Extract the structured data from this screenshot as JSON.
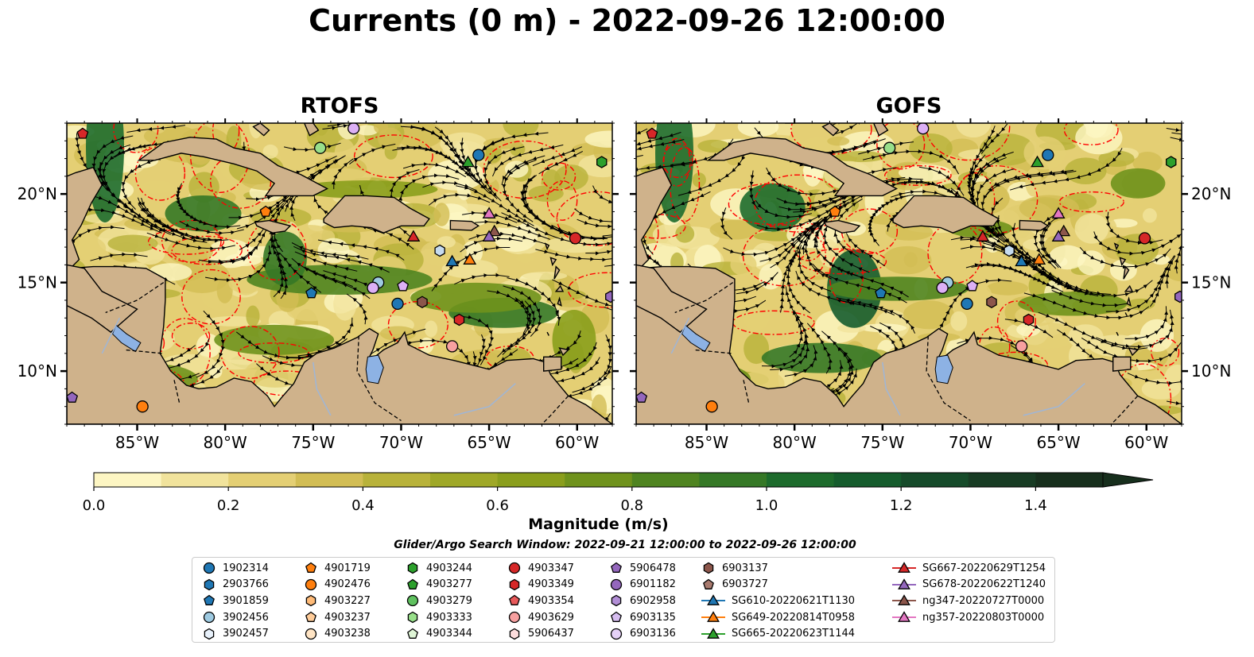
{
  "figure": {
    "title": "Currents (0 m) - 2022-09-26 12:00:00",
    "search_window": "Glider/Argo Search Window: 2022-09-21 12:00:00 to 2022-09-26 12:00:00"
  },
  "colors": {
    "land": "#cfb28b",
    "water_low": "#fdf6c3",
    "water_mid": "#e4cf74",
    "currents_mid": "#8aa11f",
    "currents_high": "#1f6e2a",
    "currents_max": "#16301a",
    "eddy_contour": "#ff0000",
    "streamline": "#000000",
    "lakes": "#8db2e4",
    "rivers": "#9fb6d6"
  },
  "chart_data": [
    {
      "type": "map",
      "panel_title": "RTOFS",
      "lon_range": [
        -89,
        -58
      ],
      "lat_range": [
        7,
        24
      ],
      "x_ticks": [
        "85°W",
        "80°W",
        "75°W",
        "70°W",
        "65°W",
        "60°W"
      ],
      "x_tick_values": [
        -85,
        -80,
        -75,
        -70,
        -65,
        -60
      ],
      "y_ticks": [
        "20°N",
        "15°N",
        "10°N"
      ],
      "y_tick_values": [
        20,
        15,
        10
      ],
      "y_axis_side": "left",
      "markers": [
        {
          "id": "4903354",
          "shape": "pentagon",
          "color": "#d62728",
          "lon": -88.1,
          "lat": 23.4
        },
        {
          "id": "6903136",
          "shape": "circle",
          "color": "#dcb0f5",
          "lon": -72.7,
          "lat": 23.7
        },
        {
          "id": "4903333",
          "shape": "circle",
          "color": "#98df8a",
          "lon": -74.6,
          "lat": 22.6
        },
        {
          "id": "1902314",
          "shape": "circle",
          "color": "#1f77b4",
          "lon": -65.6,
          "lat": 22.2
        },
        {
          "id": "SG665-20220623T1144",
          "shape": "triangle",
          "color": "#2ca02c",
          "lon": -66.2,
          "lat": 21.8
        },
        {
          "id": "4903244",
          "shape": "hexagon",
          "color": "#2ca02c",
          "lon": -58.6,
          "lat": 21.8
        },
        {
          "id": "4901719",
          "shape": "pentagon",
          "color": "#ff7f0e",
          "lon": -77.7,
          "lat": 19.0
        },
        {
          "id": "ng357-20220803T0000",
          "shape": "triangle",
          "color": "#e377c2",
          "lon": -65.0,
          "lat": 18.9
        },
        {
          "id": "ng347-20220727T0000",
          "shape": "triangle",
          "color": "#8c564b",
          "lon": -64.7,
          "lat": 17.9
        },
        {
          "id": "SG678-20220622T1240",
          "shape": "triangle",
          "color": "#9467bd",
          "lon": -65.0,
          "lat": 17.6
        },
        {
          "id": "SG667-20220629T1254",
          "shape": "triangle",
          "color": "#d62728",
          "lon": -69.3,
          "lat": 17.6
        },
        {
          "id": "4903347",
          "shape": "circle",
          "color": "#d62728",
          "lon": -60.1,
          "lat": 17.5
        },
        {
          "id": "3902457",
          "shape": "hexagon",
          "color": "#c6dbef",
          "lon": -67.8,
          "lat": 16.8
        },
        {
          "id": "SG610-20220621T1130",
          "shape": "triangle",
          "color": "#1f77b4",
          "lon": -67.1,
          "lat": 16.2
        },
        {
          "id": "SG649-20220814T0958",
          "shape": "triangle",
          "color": "#ff7f0e",
          "lon": -66.1,
          "lat": 16.3
        },
        {
          "id": "3902456",
          "shape": "circle",
          "color": "#9ecae1",
          "lon": -71.3,
          "lat": 15.0
        },
        {
          "id": "6903135",
          "shape": "pentagon",
          "color": "#dcb0f5",
          "lon": -69.9,
          "lat": 14.8
        },
        {
          "id": "6902958",
          "shape": "circle",
          "color": "#dcb0f5",
          "lon": -71.6,
          "lat": 14.7
        },
        {
          "id": "3901859",
          "shape": "pentagon",
          "color": "#1f77b4",
          "lon": -75.1,
          "lat": 14.4
        },
        {
          "id": "6903137",
          "shape": "hexagon",
          "color": "#8c564b",
          "lon": -68.8,
          "lat": 13.9
        },
        {
          "id": "2903766",
          "shape": "circle",
          "color": "#1f77b4",
          "lon": -70.2,
          "lat": 13.8
        },
        {
          "id": "6901182",
          "shape": "hexagon",
          "color": "#9467bd",
          "lon": -58.1,
          "lat": 14.2
        },
        {
          "id": "4903349",
          "shape": "hexagon",
          "color": "#d62728",
          "lon": -66.7,
          "lat": 12.9
        },
        {
          "id": "4903629",
          "shape": "circle",
          "color": "#f7a0a0",
          "lon": -67.1,
          "lat": 11.4
        },
        {
          "id": "5906478",
          "shape": "pentagon",
          "color": "#9467bd",
          "lon": -88.7,
          "lat": 8.5
        },
        {
          "id": "4902476",
          "shape": "circle",
          "color": "#ff7f0e",
          "lon": -84.7,
          "lat": 8.0
        }
      ]
    },
    {
      "type": "map",
      "panel_title": "GOFS",
      "lon_range": [
        -89,
        -58
      ],
      "lat_range": [
        7,
        24
      ],
      "x_ticks": [
        "85°W",
        "80°W",
        "75°W",
        "70°W",
        "65°W",
        "60°W"
      ],
      "x_tick_values": [
        -85,
        -80,
        -75,
        -70,
        -65,
        -60
      ],
      "y_ticks": [
        "20°N",
        "15°N",
        "10°N"
      ],
      "y_tick_values": [
        20,
        15,
        10
      ],
      "y_axis_side": "right",
      "markers": [
        {
          "id": "4903354",
          "shape": "pentagon",
          "color": "#d62728",
          "lon": -88.1,
          "lat": 23.4
        },
        {
          "id": "6903136",
          "shape": "circle",
          "color": "#dcb0f5",
          "lon": -72.7,
          "lat": 23.7
        },
        {
          "id": "4903333",
          "shape": "circle",
          "color": "#98df8a",
          "lon": -74.6,
          "lat": 22.6
        },
        {
          "id": "1902314",
          "shape": "circle",
          "color": "#1f77b4",
          "lon": -65.6,
          "lat": 22.2
        },
        {
          "id": "SG665-20220623T1144",
          "shape": "triangle",
          "color": "#2ca02c",
          "lon": -66.2,
          "lat": 21.8
        },
        {
          "id": "4903244",
          "shape": "hexagon",
          "color": "#2ca02c",
          "lon": -58.6,
          "lat": 21.8
        },
        {
          "id": "4901719",
          "shape": "pentagon",
          "color": "#ff7f0e",
          "lon": -77.7,
          "lat": 19.0
        },
        {
          "id": "ng357-20220803T0000",
          "shape": "triangle",
          "color": "#e377c2",
          "lon": -65.0,
          "lat": 18.9
        },
        {
          "id": "ng347-20220727T0000",
          "shape": "triangle",
          "color": "#8c564b",
          "lon": -64.7,
          "lat": 17.9
        },
        {
          "id": "SG678-20220622T1240",
          "shape": "triangle",
          "color": "#9467bd",
          "lon": -65.0,
          "lat": 17.6
        },
        {
          "id": "SG667-20220629T1254",
          "shape": "triangle",
          "color": "#d62728",
          "lon": -69.3,
          "lat": 17.6
        },
        {
          "id": "4903347",
          "shape": "circle",
          "color": "#d62728",
          "lon": -60.1,
          "lat": 17.5
        },
        {
          "id": "3902457",
          "shape": "hexagon",
          "color": "#c6dbef",
          "lon": -67.8,
          "lat": 16.8
        },
        {
          "id": "SG610-20220621T1130",
          "shape": "triangle",
          "color": "#1f77b4",
          "lon": -67.1,
          "lat": 16.2
        },
        {
          "id": "SG649-20220814T0958",
          "shape": "triangle",
          "color": "#ff7f0e",
          "lon": -66.1,
          "lat": 16.3
        },
        {
          "id": "3902456",
          "shape": "circle",
          "color": "#9ecae1",
          "lon": -71.3,
          "lat": 15.0
        },
        {
          "id": "6903135",
          "shape": "pentagon",
          "color": "#dcb0f5",
          "lon": -69.9,
          "lat": 14.8
        },
        {
          "id": "6902958",
          "shape": "circle",
          "color": "#dcb0f5",
          "lon": -71.6,
          "lat": 14.7
        },
        {
          "id": "3901859",
          "shape": "pentagon",
          "color": "#1f77b4",
          "lon": -75.1,
          "lat": 14.4
        },
        {
          "id": "6903137",
          "shape": "hexagon",
          "color": "#8c564b",
          "lon": -68.8,
          "lat": 13.9
        },
        {
          "id": "2903766",
          "shape": "circle",
          "color": "#1f77b4",
          "lon": -70.2,
          "lat": 13.8
        },
        {
          "id": "6901182",
          "shape": "hexagon",
          "color": "#9467bd",
          "lon": -58.1,
          "lat": 14.2
        },
        {
          "id": "4903349",
          "shape": "hexagon",
          "color": "#d62728",
          "lon": -66.7,
          "lat": 12.9
        },
        {
          "id": "4903629",
          "shape": "circle",
          "color": "#f7a0a0",
          "lon": -67.1,
          "lat": 11.4
        },
        {
          "id": "5906478",
          "shape": "pentagon",
          "color": "#9467bd",
          "lon": -88.7,
          "lat": 8.5
        },
        {
          "id": "4902476",
          "shape": "circle",
          "color": "#ff7f0e",
          "lon": -84.7,
          "lat": 8.0
        }
      ]
    },
    {
      "type": "colorbar",
      "label": "Magnitude (m/s)",
      "range": [
        0.0,
        1.5
      ],
      "extend": "max",
      "ticks": [
        0.0,
        0.2,
        0.4,
        0.6,
        0.8,
        1.0,
        1.2,
        1.4
      ],
      "tick_labels": [
        "0.0",
        "0.2",
        "0.4",
        "0.6",
        "0.8",
        "1.0",
        "1.2",
        "1.4"
      ],
      "levels": [
        {
          "from": 0.0,
          "to": 0.1,
          "color": "#fdf6c3"
        },
        {
          "from": 0.1,
          "to": 0.2,
          "color": "#f1e39c"
        },
        {
          "from": 0.2,
          "to": 0.3,
          "color": "#e4cf74"
        },
        {
          "from": 0.3,
          "to": 0.4,
          "color": "#d2bd54"
        },
        {
          "from": 0.4,
          "to": 0.5,
          "color": "#b8b23a"
        },
        {
          "from": 0.5,
          "to": 0.6,
          "color": "#9fa827"
        },
        {
          "from": 0.6,
          "to": 0.7,
          "color": "#8a9e1c"
        },
        {
          "from": 0.7,
          "to": 0.8,
          "color": "#6f921c"
        },
        {
          "from": 0.8,
          "to": 0.9,
          "color": "#4f8420"
        },
        {
          "from": 0.9,
          "to": 1.0,
          "color": "#357826"
        },
        {
          "from": 1.0,
          "to": 1.1,
          "color": "#1d6b2c"
        },
        {
          "from": 1.1,
          "to": 1.2,
          "color": "#155c2d"
        },
        {
          "from": 1.2,
          "to": 1.3,
          "color": "#164b2a"
        },
        {
          "from": 1.3,
          "to": 1.4,
          "color": "#183c24"
        },
        {
          "from": 1.4,
          "to": 1.5,
          "color": "#172f1d"
        }
      ]
    }
  ],
  "legend": {
    "columns": [
      [
        {
          "label": "1902314",
          "shape": "circle",
          "color": "#1f77b4"
        },
        {
          "label": "2903766",
          "shape": "hexagon",
          "color": "#1f77b4"
        },
        {
          "label": "3901859",
          "shape": "pentagon",
          "color": "#1f77b4"
        },
        {
          "label": "3902456",
          "shape": "circle",
          "color": "#9ecae1"
        },
        {
          "label": "3902457",
          "shape": "hexagon",
          "color": "#e8f1fb"
        }
      ],
      [
        {
          "label": "4901719",
          "shape": "pentagon",
          "color": "#ff7f0e"
        },
        {
          "label": "4902476",
          "shape": "circle",
          "color": "#ff7f0e"
        },
        {
          "label": "4903227",
          "shape": "hexagon",
          "color": "#ffbb78"
        },
        {
          "label": "4903237",
          "shape": "pentagon",
          "color": "#ffcc99"
        },
        {
          "label": "4903238",
          "shape": "circle",
          "color": "#ffe4c4"
        }
      ],
      [
        {
          "label": "4903244",
          "shape": "hexagon",
          "color": "#2ca02c"
        },
        {
          "label": "4903277",
          "shape": "pentagon",
          "color": "#2ca02c"
        },
        {
          "label": "4903279",
          "shape": "circle",
          "color": "#5fc15f"
        },
        {
          "label": "4903333",
          "shape": "hexagon",
          "color": "#98df8a"
        },
        {
          "label": "4903344",
          "shape": "pentagon",
          "color": "#dff5d6"
        }
      ],
      [
        {
          "label": "4903347",
          "shape": "circle",
          "color": "#d62728"
        },
        {
          "label": "4903349",
          "shape": "hexagon",
          "color": "#d62728"
        },
        {
          "label": "4903354",
          "shape": "pentagon",
          "color": "#e8595a"
        },
        {
          "label": "4903629",
          "shape": "circle",
          "color": "#f7a0a0"
        },
        {
          "label": "5906437",
          "shape": "hexagon",
          "color": "#fcdcdc"
        }
      ],
      [
        {
          "label": "5906478",
          "shape": "pentagon",
          "color": "#9467bd"
        },
        {
          "label": "6901182",
          "shape": "circle",
          "color": "#9467bd"
        },
        {
          "label": "6902958",
          "shape": "hexagon",
          "color": "#b28ed6"
        },
        {
          "label": "6903135",
          "shape": "pentagon",
          "color": "#d6bdf0"
        },
        {
          "label": "6903136",
          "shape": "circle",
          "color": "#e5d1f7"
        }
      ],
      [
        {
          "label": "6903137",
          "shape": "hexagon",
          "color": "#8c564b"
        },
        {
          "label": "6903727",
          "shape": "pentagon",
          "color": "#a87a6e"
        },
        {
          "label": "SG610-20220621T1130",
          "shape": "triangle-line",
          "color": "#1f77b4"
        },
        {
          "label": "SG649-20220814T0958",
          "shape": "triangle-line",
          "color": "#ff7f0e"
        },
        {
          "label": "SG665-20220623T1144",
          "shape": "triangle-line",
          "color": "#2ca02c"
        }
      ],
      [
        {
          "label": "SG667-20220629T1254",
          "shape": "triangle-line",
          "color": "#d62728"
        },
        {
          "label": "SG678-20220622T1240",
          "shape": "triangle-line",
          "color": "#9467bd"
        },
        {
          "label": "ng347-20220727T0000",
          "shape": "triangle-line",
          "color": "#8c564b"
        },
        {
          "label": "ng357-20220803T0000",
          "shape": "triangle-line",
          "color": "#e377c2"
        }
      ]
    ]
  }
}
